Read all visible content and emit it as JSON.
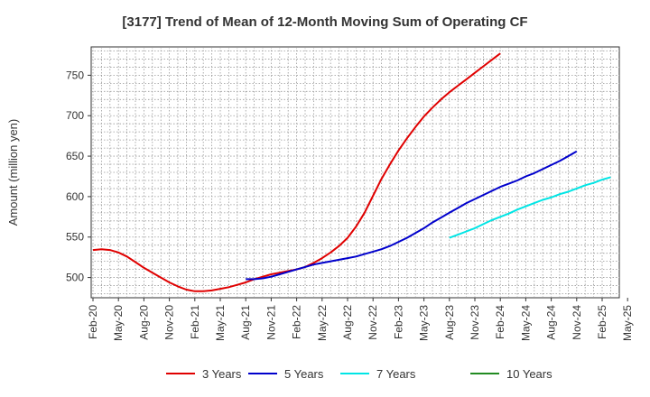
{
  "chart_data": {
    "type": "line",
    "title": "[3177]  Trend of Mean of 12-Month Moving Sum of Operating CF",
    "xlabel": "",
    "ylabel": "Amount (million yen)",
    "ylim": [
      475,
      785
    ],
    "yticks": [
      500,
      550,
      600,
      650,
      700,
      750
    ],
    "grid": true,
    "legend_position": "bottom",
    "x_tick_labels": [
      "Feb-20",
      "May-20",
      "Aug-20",
      "Nov-20",
      "Feb-21",
      "May-21",
      "Aug-21",
      "Nov-21",
      "Feb-22",
      "May-22",
      "Aug-22",
      "Nov-22",
      "Feb-23",
      "May-23",
      "Aug-23",
      "Nov-23",
      "Feb-24",
      "May-24",
      "Aug-24",
      "Nov-24",
      "Feb-25",
      "May-25"
    ],
    "x_range_months": [
      0,
      63
    ],
    "series": [
      {
        "name": "3 Years",
        "color": "#e00000",
        "start_month": 0,
        "values": [
          534,
          535,
          534,
          531,
          526,
          519,
          512,
          506,
          500,
          494,
          489,
          485,
          483,
          483,
          484,
          486,
          488,
          491,
          494,
          498,
          501,
          504,
          506,
          508,
          510,
          513,
          518,
          524,
          531,
          539,
          549,
          563,
          580,
          601,
          622,
          640,
          657,
          672,
          686,
          699,
          710,
          720,
          729,
          737,
          745,
          753,
          761,
          769,
          777
        ]
      },
      {
        "name": "5 Years",
        "color": "#0000cc",
        "start_month": 18,
        "values": [
          498,
          498,
          499,
          501,
          504,
          507,
          510,
          513,
          516,
          518,
          520,
          522,
          524,
          526,
          529,
          532,
          535,
          539,
          544,
          549,
          555,
          561,
          568,
          574,
          580,
          586,
          592,
          597,
          602,
          607,
          612,
          616,
          620,
          625,
          629,
          634,
          639,
          644,
          650,
          656
        ]
      },
      {
        "name": "7 Years",
        "color": "#00e5e5",
        "start_month": 42,
        "values": [
          549,
          553,
          557,
          561,
          566,
          571,
          575,
          579,
          584,
          588,
          592,
          596,
          599,
          603,
          606,
          610,
          614,
          617,
          621,
          624
        ]
      },
      {
        "name": "10 Years",
        "color": "#228b22",
        "start_month": 0,
        "values": []
      }
    ]
  }
}
